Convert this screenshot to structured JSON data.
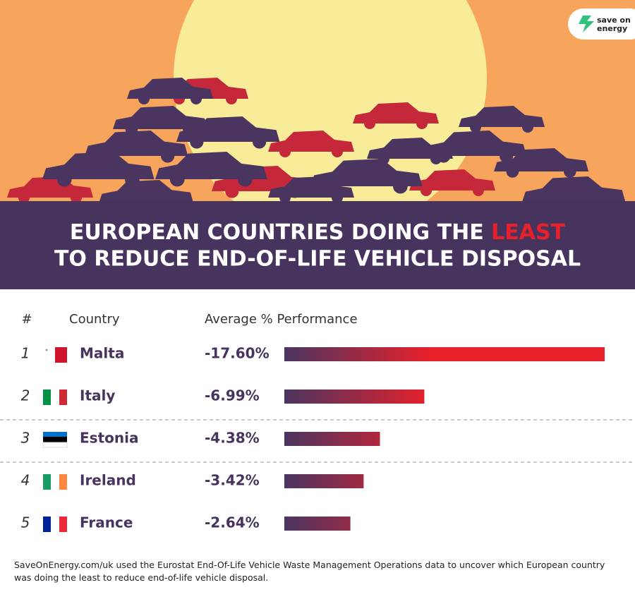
{
  "logo": [
    "save on",
    "energy"
  ],
  "chart_data": {
    "type": "bar",
    "title_parts": [
      "EUROPEAN COUNTRIES DOING THE",
      "LEAST",
      "TO REDUCE END-OF-LIFE VEHICLE DISPOSAL"
    ],
    "headers": [
      "#",
      "Country",
      "Average % Performance"
    ],
    "ranks": [
      1,
      2,
      3,
      4,
      5
    ],
    "categories": [
      "Malta",
      "Italy",
      "Estonia",
      "Ireland",
      "France"
    ],
    "values": [
      -17.6,
      -6.99,
      -4.38,
      -3.42,
      -2.64
    ],
    "value_labels": [
      "-17.60%",
      "-6.99%",
      "-4.38%",
      "-3.42%",
      "-2.64%"
    ],
    "colors": [
      "#4a3560",
      "#e8202a"
    ],
    "footnote": "SaveOnEnergy.com/uk used the Eurostat End-Of-Life Vehicle Waste Management Operations data to uncover which European country was doing the least to reduce end-of-life vehicle disposal."
  }
}
